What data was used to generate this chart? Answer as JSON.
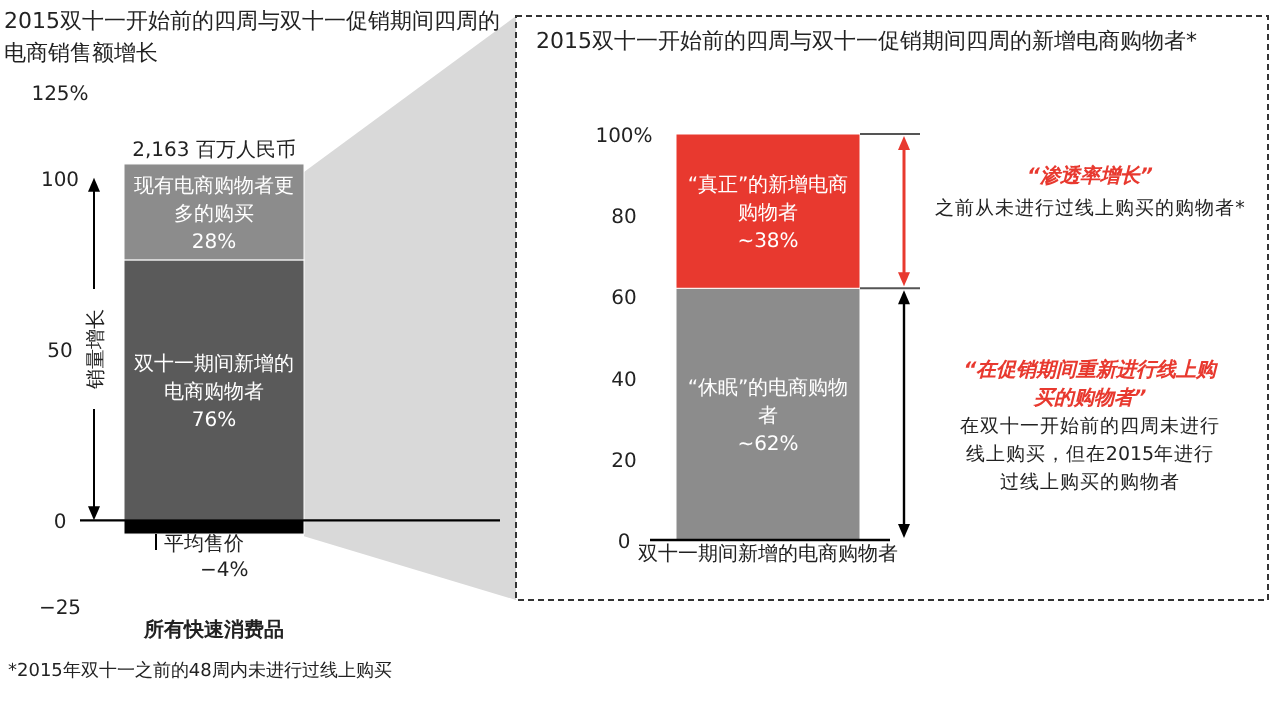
{
  "chart_data": [
    {
      "type": "bar",
      "title": "2015双十一开始前的四周与双十一促销期间四周的电商销售额增长",
      "ylabel": "销量增长",
      "categories": [
        "所有快速消费品"
      ],
      "stacked": true,
      "ylim": [
        -25,
        125
      ],
      "yticks": [
        {
          "value": -25,
          "label": "−25"
        },
        0,
        50,
        100,
        {
          "value": 125,
          "label": "125%"
        }
      ],
      "series": [
        {
          "color": "#5a5a5a",
          "values": [
            76
          ],
          "value_labels": [
            "双十一期间新增的电商购物者\n76%"
          ]
        },
        {
          "color": "#8c8c8c",
          "values": [
            28
          ],
          "value_labels": [
            "现有电商购物者更多的购买\n28%"
          ]
        },
        {
          "color": "#000000",
          "values": [
            -4
          ],
          "value_labels": [
            "平均售价\n−4%"
          ]
        }
      ],
      "annotations": [
        "*2015年双十一之前的48周内未进行过线上购买",
        "2,163 百万人民币"
      ]
    },
    {
      "type": "bar",
      "title": "2015双十一开始前的四周与双十一促销期间四周的新增电商购物者*",
      "categories": [
        "双十一期间新增的电商购物者"
      ],
      "stacked": true,
      "ylim": [
        0,
        100
      ],
      "yticks": [
        0,
        20,
        40,
        60,
        80,
        {
          "value": 100,
          "label": "100%"
        }
      ],
      "series": [
        {
          "color": "#8c8c8c",
          "values": [
            62
          ],
          "value_labels": [
            "“休眠”的电商购物者\n~62%"
          ]
        },
        {
          "color": "#e8392f",
          "values": [
            38
          ],
          "value_labels": [
            "“真正”的新增电商购物者\n~38%"
          ]
        }
      ],
      "annotations": [
        "“渗透率增长”",
        "之前从未进行过线上购买的购物者*",
        "“在促销期间重新进行线上购买的购物者”",
        "在双十一开始前的四周未进行线上购买，但在2015年进行过线上购买的购物者"
      ]
    }
  ]
}
